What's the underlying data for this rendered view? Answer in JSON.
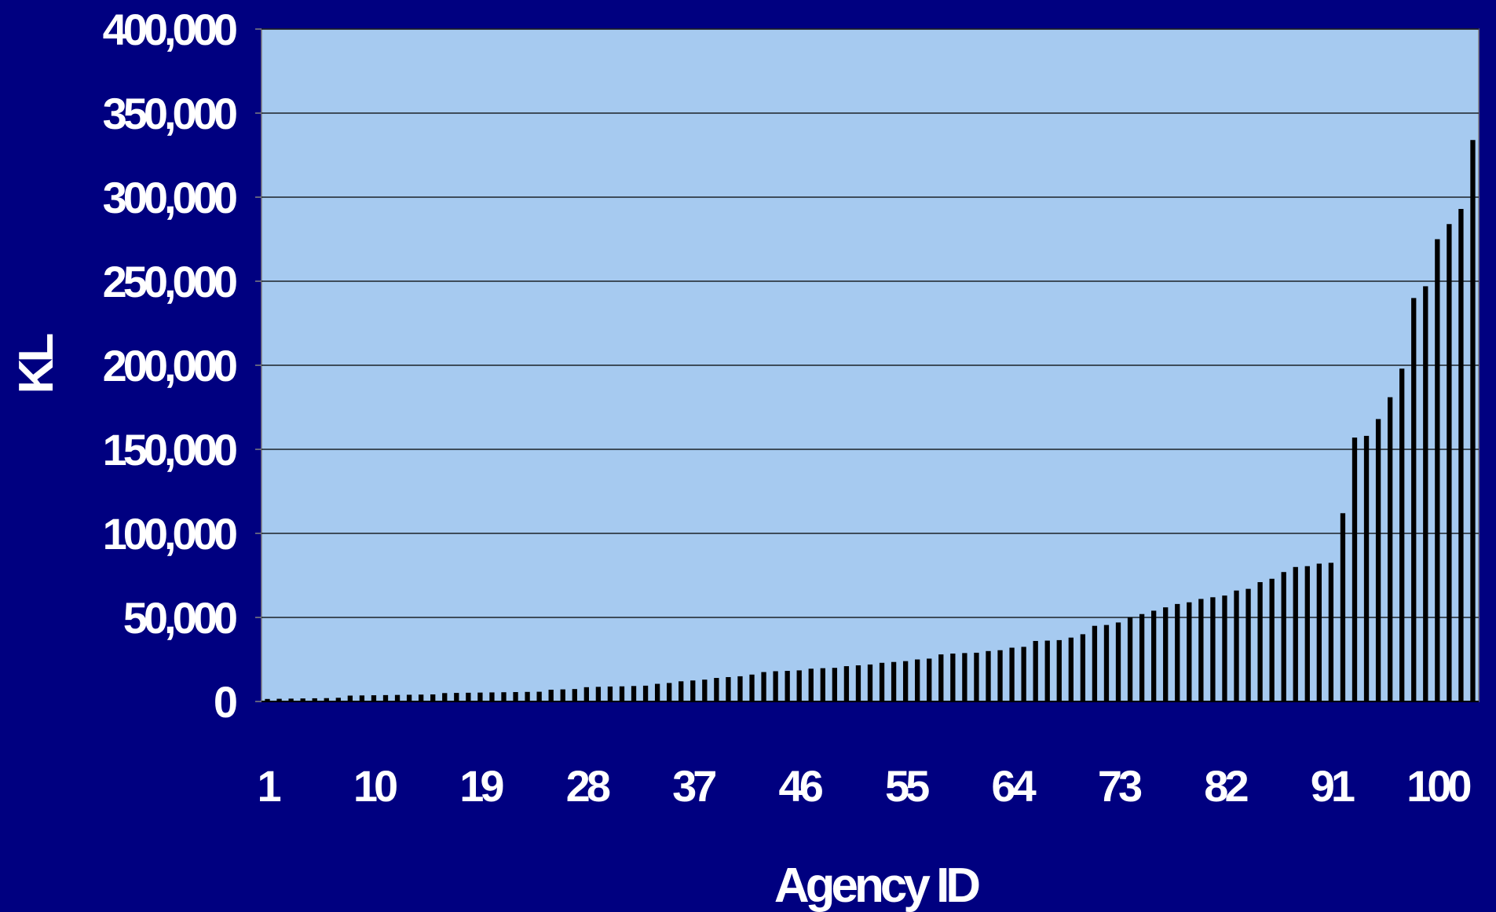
{
  "chart_data": {
    "type": "bar",
    "xlabel": "Agency ID",
    "ylabel": "KL",
    "ylim": [
      0,
      400000
    ],
    "y_ticks": [
      {
        "value": 0,
        "label": "0"
      },
      {
        "value": 50000,
        "label": "50,000"
      },
      {
        "value": 100000,
        "label": "100,000"
      },
      {
        "value": 150000,
        "label": "150,000"
      },
      {
        "value": 200000,
        "label": "200,000"
      },
      {
        "value": 250000,
        "label": "250,000"
      },
      {
        "value": 300000,
        "label": "300,000"
      },
      {
        "value": 350000,
        "label": "350,000"
      },
      {
        "value": 400000,
        "label": "400,000"
      }
    ],
    "x_tick_labels": [
      "1",
      "10",
      "19",
      "28",
      "37",
      "46",
      "55",
      "64",
      "73",
      "82",
      "91",
      "100"
    ],
    "grid": true,
    "legend": "none",
    "colors": {
      "background": "#000080",
      "plot_area": "#A6CAF0",
      "bars": "#000000",
      "gridlines": "#000000",
      "text": "#FFFFFF"
    },
    "categories": [
      1,
      2,
      3,
      4,
      5,
      6,
      7,
      8,
      9,
      10,
      11,
      12,
      13,
      14,
      15,
      16,
      17,
      18,
      19,
      20,
      21,
      22,
      23,
      24,
      25,
      26,
      27,
      28,
      29,
      30,
      31,
      32,
      33,
      34,
      35,
      36,
      37,
      38,
      39,
      40,
      41,
      42,
      43,
      44,
      45,
      46,
      47,
      48,
      49,
      50,
      51,
      52,
      53,
      54,
      55,
      56,
      57,
      58,
      59,
      60,
      61,
      62,
      63,
      64,
      65,
      66,
      67,
      68,
      69,
      70,
      71,
      72,
      73,
      74,
      75,
      76,
      77,
      78,
      79,
      80,
      81,
      82,
      83,
      84,
      85,
      86,
      87,
      88,
      89,
      90,
      91,
      92,
      93,
      94,
      95,
      96,
      97,
      98,
      99,
      100,
      101,
      102,
      103
    ],
    "values": [
      1500,
      1600,
      1700,
      1800,
      1900,
      2000,
      2200,
      3500,
      3600,
      3700,
      3800,
      3900,
      4000,
      4100,
      4200,
      5000,
      5100,
      5200,
      5300,
      5400,
      5500,
      5600,
      5700,
      5800,
      7000,
      7200,
      7400,
      8500,
      8700,
      8900,
      9000,
      9200,
      9400,
      10500,
      11000,
      12000,
      12500,
      13000,
      14000,
      14500,
      15000,
      16000,
      17500,
      18000,
      18200,
      18500,
      19500,
      19800,
      20000,
      21000,
      21500,
      22000,
      23000,
      23500,
      24000,
      25000,
      25500,
      28000,
      28500,
      28800,
      29000,
      30000,
      30500,
      32000,
      32500,
      36000,
      36200,
      36500,
      38000,
      40000,
      45000,
      45500,
      47000,
      50000,
      52000,
      54000,
      56000,
      58000,
      59000,
      61000,
      62000,
      63000,
      66000,
      67000,
      71000,
      73000,
      77000,
      80000,
      80500,
      82000,
      82500,
      112000,
      157000,
      158000,
      168000,
      181000,
      198000,
      240000,
      247000,
      275000,
      284000,
      293000,
      334000
    ]
  }
}
